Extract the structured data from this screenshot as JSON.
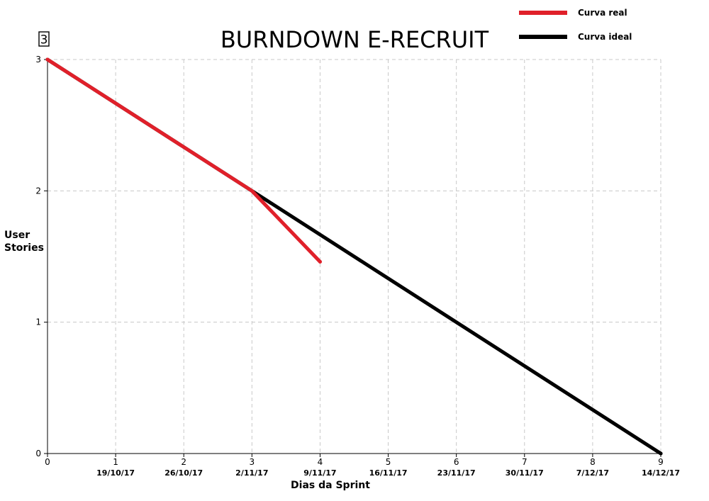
{
  "chart_data": {
    "type": "line",
    "title": "BURNDOWN E-RECRUIT",
    "badge": "3",
    "xlabel": "Dias da Sprint",
    "ylabel": [
      "User",
      "Stories"
    ],
    "xlim": [
      0,
      9
    ],
    "ylim": [
      0,
      3
    ],
    "x_ticks": [
      "0",
      "1",
      "2",
      "3",
      "4",
      "5",
      "6",
      "7",
      "8",
      "9"
    ],
    "y_ticks": [
      "0",
      "1",
      "2",
      "3"
    ],
    "date_labels": [
      "19/10/17",
      "26/10/17",
      "2/11/17",
      "9/11/17",
      "16/11/17",
      "23/11/17",
      "30/11/17",
      "7/12/17",
      "14/12/17"
    ],
    "grid": true,
    "legend_position": "top-right",
    "series": [
      {
        "name": "Curva real",
        "color": "#e0202a",
        "x": [
          0,
          3,
          4
        ],
        "y": [
          3,
          2,
          1.46
        ]
      },
      {
        "name": "Curva ideal",
        "color": "#000000",
        "x": [
          0,
          9
        ],
        "y": [
          3,
          0
        ]
      }
    ]
  }
}
